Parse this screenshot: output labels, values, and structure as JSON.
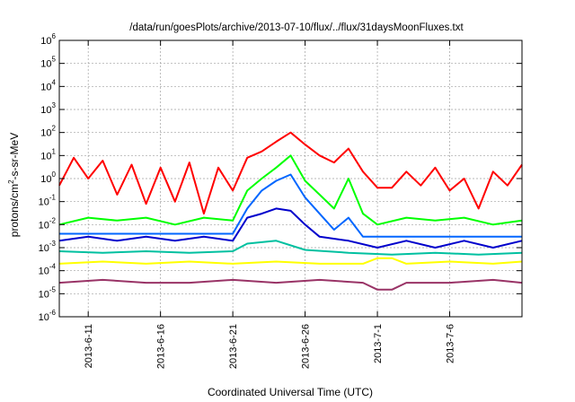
{
  "chart_data": {
    "type": "line",
    "title": "/data/run/goesPlots/archive/2013-07-10/flux/../flux/31daysMoonFluxes.txt",
    "xlabel": "Coordinated Universal Time (UTC)",
    "ylabel": {
      "base": "protons/cm",
      "sup": "2",
      "rest": "-s-sr-MeV"
    },
    "yscale": "log",
    "ylim": [
      1e-06,
      1000000.0
    ],
    "ytick_exponents": [
      -6,
      -5,
      -4,
      -3,
      -2,
      -1,
      0,
      1,
      2,
      3,
      4,
      5,
      6
    ],
    "ytick_base": "10",
    "xlim_days": [
      "2013-06-09",
      "2013-07-11"
    ],
    "xticks": [
      "2013-6-11",
      "2013-6-16",
      "2013-6-21",
      "2013-6-26",
      "2013-7-1",
      "2013-7-6"
    ],
    "grid": true,
    "series": [
      {
        "color": "#ff0000",
        "points": [
          [
            "2013-06-09",
            0.5
          ],
          [
            "2013-06-10",
            8
          ],
          [
            "2013-06-11",
            1
          ],
          [
            "2013-06-12",
            6
          ],
          [
            "2013-06-13",
            0.2
          ],
          [
            "2013-06-14",
            4
          ],
          [
            "2013-06-15",
            0.08
          ],
          [
            "2013-06-16",
            3
          ],
          [
            "2013-06-17",
            0.1
          ],
          [
            "2013-06-18",
            5
          ],
          [
            "2013-06-19",
            0.03
          ],
          [
            "2013-06-20",
            3
          ],
          [
            "2013-06-21",
            0.3
          ],
          [
            "2013-06-22",
            8
          ],
          [
            "2013-06-23",
            15
          ],
          [
            "2013-06-24",
            40
          ],
          [
            "2013-06-25",
            100
          ],
          [
            "2013-06-26",
            30
          ],
          [
            "2013-06-27",
            10
          ],
          [
            "2013-06-28",
            5
          ],
          [
            "2013-06-29",
            20
          ],
          [
            "2013-06-30",
            2
          ],
          [
            "2013-07-01",
            0.4
          ],
          [
            "2013-07-02",
            0.4
          ],
          [
            "2013-07-03",
            2
          ],
          [
            "2013-07-04",
            0.5
          ],
          [
            "2013-07-05",
            3
          ],
          [
            "2013-07-06",
            0.3
          ],
          [
            "2013-07-07",
            1
          ],
          [
            "2013-07-08",
            0.05
          ],
          [
            "2013-07-09",
            2
          ],
          [
            "2013-07-10",
            0.5
          ],
          [
            "2013-07-11",
            4
          ]
        ]
      },
      {
        "color": "#00ff00",
        "points": [
          [
            "2013-06-09",
            0.01
          ],
          [
            "2013-06-11",
            0.02
          ],
          [
            "2013-06-13",
            0.015
          ],
          [
            "2013-06-15",
            0.02
          ],
          [
            "2013-06-17",
            0.01
          ],
          [
            "2013-06-19",
            0.02
          ],
          [
            "2013-06-21",
            0.015
          ],
          [
            "2013-06-22",
            0.3
          ],
          [
            "2013-06-23",
            1
          ],
          [
            "2013-06-24",
            3
          ],
          [
            "2013-06-25",
            10
          ],
          [
            "2013-06-26",
            0.8
          ],
          [
            "2013-06-27",
            0.2
          ],
          [
            "2013-06-28",
            0.05
          ],
          [
            "2013-06-29",
            1
          ],
          [
            "2013-06-30",
            0.03
          ],
          [
            "2013-07-01",
            0.01
          ],
          [
            "2013-07-03",
            0.02
          ],
          [
            "2013-07-05",
            0.015
          ],
          [
            "2013-07-07",
            0.02
          ],
          [
            "2013-07-09",
            0.01
          ],
          [
            "2013-07-11",
            0.015
          ]
        ]
      },
      {
        "color": "#0066ff",
        "points": [
          [
            "2013-06-09",
            0.004
          ],
          [
            "2013-06-12",
            0.004
          ],
          [
            "2013-06-15",
            0.004
          ],
          [
            "2013-06-18",
            0.004
          ],
          [
            "2013-06-21",
            0.004
          ],
          [
            "2013-06-22",
            0.05
          ],
          [
            "2013-06-23",
            0.3
          ],
          [
            "2013-06-24",
            0.8
          ],
          [
            "2013-06-25",
            1.5
          ],
          [
            "2013-06-26",
            0.15
          ],
          [
            "2013-06-27",
            0.03
          ],
          [
            "2013-06-28",
            0.006
          ],
          [
            "2013-06-29",
            0.02
          ],
          [
            "2013-06-30",
            0.003
          ],
          [
            "2013-07-02",
            0.003
          ],
          [
            "2013-07-05",
            0.003
          ],
          [
            "2013-07-08",
            0.003
          ],
          [
            "2013-07-11",
            0.003
          ]
        ]
      },
      {
        "color": "#0000cc",
        "points": [
          [
            "2013-06-09",
            0.002
          ],
          [
            "2013-06-11",
            0.003
          ],
          [
            "2013-06-13",
            0.002
          ],
          [
            "2013-06-15",
            0.003
          ],
          [
            "2013-06-17",
            0.002
          ],
          [
            "2013-06-19",
            0.003
          ],
          [
            "2013-06-21",
            0.002
          ],
          [
            "2013-06-22",
            0.02
          ],
          [
            "2013-06-23",
            0.03
          ],
          [
            "2013-06-24",
            0.05
          ],
          [
            "2013-06-25",
            0.04
          ],
          [
            "2013-06-26",
            0.01
          ],
          [
            "2013-06-27",
            0.003
          ],
          [
            "2013-06-29",
            0.002
          ],
          [
            "2013-07-01",
            0.001
          ],
          [
            "2013-07-03",
            0.002
          ],
          [
            "2013-07-05",
            0.001
          ],
          [
            "2013-07-07",
            0.002
          ],
          [
            "2013-07-09",
            0.001
          ],
          [
            "2013-07-11",
            0.002
          ]
        ]
      },
      {
        "color": "#00c0a0",
        "points": [
          [
            "2013-06-09",
            0.0007
          ],
          [
            "2013-06-12",
            0.0006
          ],
          [
            "2013-06-15",
            0.0007
          ],
          [
            "2013-06-18",
            0.0006
          ],
          [
            "2013-06-21",
            0.0007
          ],
          [
            "2013-06-22",
            0.0015
          ],
          [
            "2013-06-24",
            0.002
          ],
          [
            "2013-06-26",
            0.0008
          ],
          [
            "2013-06-29",
            0.0006
          ],
          [
            "2013-07-02",
            0.0005
          ],
          [
            "2013-07-05",
            0.0006
          ],
          [
            "2013-07-08",
            0.0005
          ],
          [
            "2013-07-11",
            0.0006
          ]
        ]
      },
      {
        "color": "#ffff00",
        "points": [
          [
            "2013-06-09",
            0.0002
          ],
          [
            "2013-06-12",
            0.00025
          ],
          [
            "2013-06-15",
            0.0002
          ],
          [
            "2013-06-18",
            0.00025
          ],
          [
            "2013-06-21",
            0.0002
          ],
          [
            "2013-06-24",
            0.00025
          ],
          [
            "2013-06-27",
            0.0002
          ],
          [
            "2013-06-30",
            0.0002
          ],
          [
            "2013-07-01",
            0.00035
          ],
          [
            "2013-07-02",
            0.00035
          ],
          [
            "2013-07-03",
            0.0002
          ],
          [
            "2013-07-06",
            0.00025
          ],
          [
            "2013-07-09",
            0.0002
          ],
          [
            "2013-07-11",
            0.00025
          ]
        ]
      },
      {
        "color": "#993366",
        "points": [
          [
            "2013-06-09",
            3e-05
          ],
          [
            "2013-06-12",
            4e-05
          ],
          [
            "2013-06-15",
            3e-05
          ],
          [
            "2013-06-18",
            3e-05
          ],
          [
            "2013-06-21",
            4e-05
          ],
          [
            "2013-06-24",
            3e-05
          ],
          [
            "2013-06-27",
            4e-05
          ],
          [
            "2013-06-30",
            3e-05
          ],
          [
            "2013-07-01",
            1.5e-05
          ],
          [
            "2013-07-02",
            1.5e-05
          ],
          [
            "2013-07-03",
            3e-05
          ],
          [
            "2013-07-06",
            3e-05
          ],
          [
            "2013-07-09",
            4e-05
          ],
          [
            "2013-07-11",
            3e-05
          ]
        ]
      }
    ]
  }
}
